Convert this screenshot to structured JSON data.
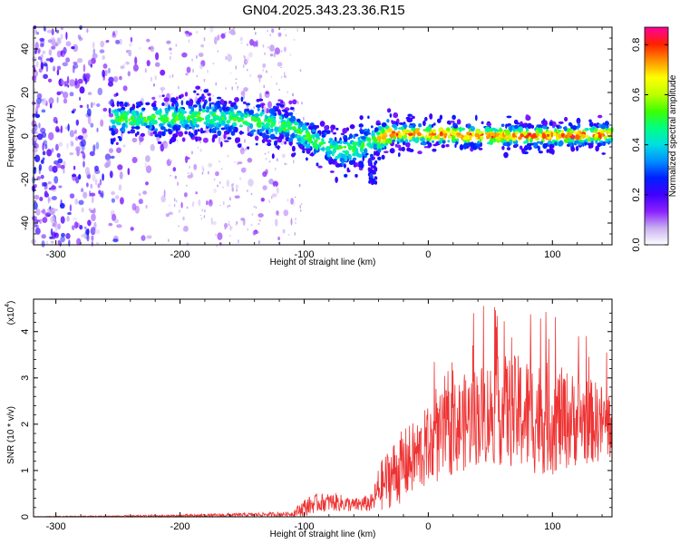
{
  "title": "GN04.2025.343.23.36.R15",
  "colors": {
    "line": "#ee3333",
    "background": "#ffffff",
    "colormap": [
      "#ffffff",
      "#c8b0f0",
      "#8a20ff",
      "#4000ff",
      "#0020ff",
      "#0090ff",
      "#00e0e0",
      "#00ff80",
      "#40ff00",
      "#c0ff00",
      "#ffff00",
      "#ff9000",
      "#ff2000",
      "#ff00a0"
    ]
  },
  "chart_data": [
    {
      "type": "heatmap",
      "xlabel": "Height of straight line (km)",
      "ylabel": "Frequency (Hz)",
      "xlim": [
        -318,
        148
      ],
      "ylim": [
        -50,
        50
      ],
      "xticks": [
        -300,
        -200,
        -100,
        0,
        100
      ],
      "xtick_labels": [
        "-300",
        "-200",
        "-100",
        "0",
        "100"
      ],
      "yticks": [
        -40,
        -20,
        0,
        20,
        40
      ],
      "ytick_labels": [
        "-40",
        "-20",
        "0",
        "20",
        "40"
      ],
      "colorbar": {
        "label": "Normalized spectral amplitude",
        "range": [
          0,
          0.87
        ],
        "ticks": [
          0,
          0.2,
          0.4,
          0.6,
          0.8
        ],
        "tick_labels": [
          "0.0",
          "0.2",
          "0.4",
          "0.6",
          "0.8"
        ]
      },
      "ridge": {
        "description_points_x": [
          -250,
          -220,
          -180,
          -140,
          -110,
          -90,
          -70,
          -55,
          -45,
          -30,
          0,
          50,
          100,
          148
        ],
        "center_frequency_hz": [
          8,
          8,
          9,
          7,
          4,
          -3,
          -7,
          -5,
          -2,
          1,
          1,
          0,
          0,
          1
        ]
      }
    },
    {
      "type": "line",
      "xlabel": "Height of straight line (km)",
      "ylabel": "SNR (10 * v/v)",
      "yscale_label": "(x10",
      "yscale_exponent": "4",
      "yscale_close": ")",
      "xlim": [
        -318,
        148
      ],
      "ylim": [
        0,
        4.7
      ],
      "xticks": [
        -300,
        -200,
        -100,
        0,
        100
      ],
      "xtick_labels": [
        "-300",
        "-200",
        "-100",
        "0",
        "100"
      ],
      "yticks": [
        0,
        1,
        2,
        3,
        4
      ],
      "ytick_labels": [
        "0",
        "1",
        "2",
        "3",
        "4"
      ],
      "series": [
        {
          "name": "SNR",
          "envelope_x": [
            -318,
            -250,
            -200,
            -150,
            -110,
            -100,
            -90,
            -75,
            -60,
            -45,
            -40,
            -30,
            -20,
            -10,
            0,
            20,
            40,
            60,
            80,
            100,
            120,
            148
          ],
          "mean_y": [
            0.0,
            0.01,
            0.02,
            0.04,
            0.06,
            0.2,
            0.3,
            0.32,
            0.25,
            0.3,
            0.6,
            0.9,
            1.1,
            1.3,
            1.5,
            1.9,
            2.2,
            2.3,
            2.2,
            2.1,
            2.1,
            2.0
          ],
          "spread_y": [
            0.01,
            0.02,
            0.03,
            0.04,
            0.05,
            0.2,
            0.2,
            0.2,
            0.15,
            0.2,
            0.5,
            0.7,
            0.8,
            0.8,
            0.9,
            1.0,
            1.1,
            1.2,
            1.3,
            1.2,
            1.0,
            0.8
          ]
        }
      ]
    }
  ]
}
